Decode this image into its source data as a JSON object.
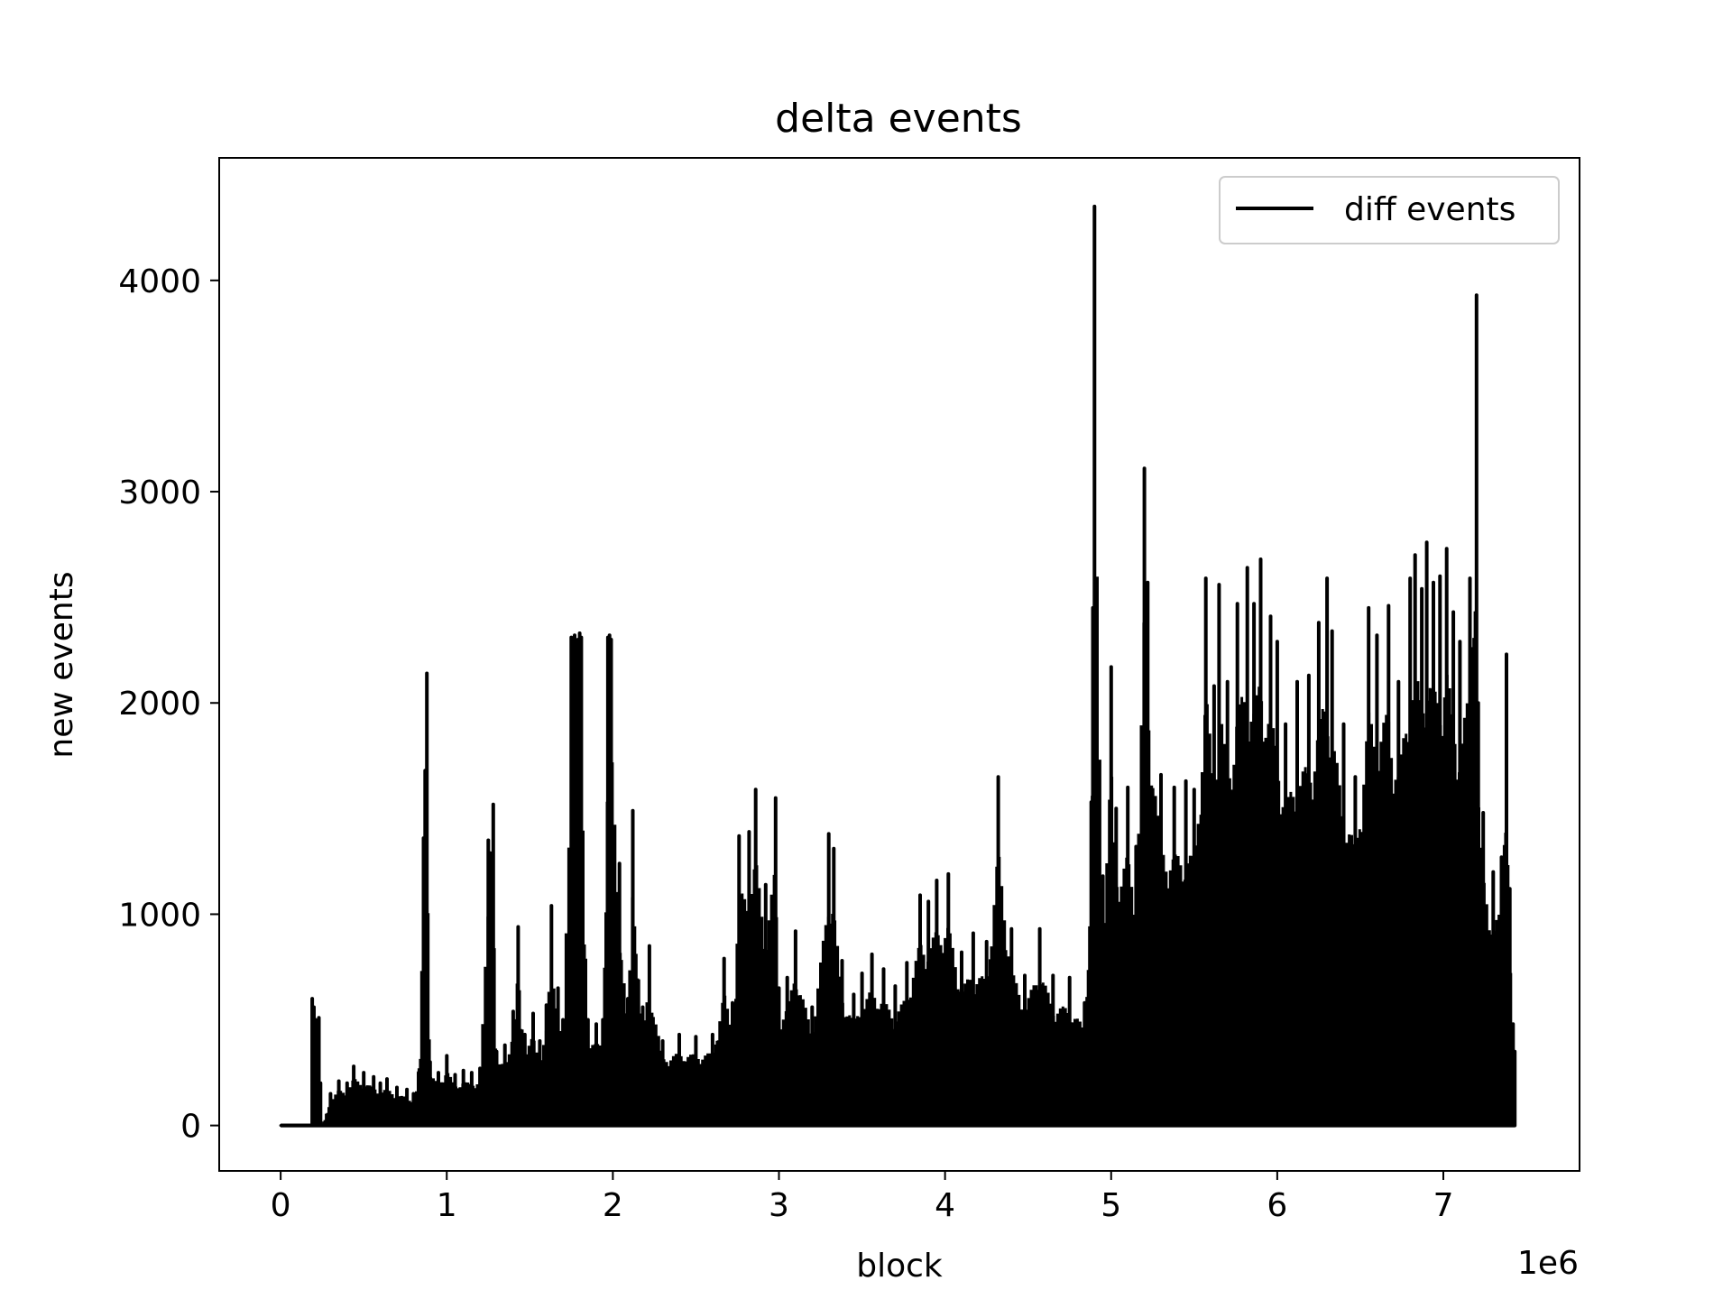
{
  "chart_data": {
    "type": "line",
    "title": "delta events",
    "xlabel": "block",
    "ylabel": "new events",
    "x_offset_label": "1e6",
    "xlim": [
      -0.37,
      7.82
    ],
    "ylim": [
      -215,
      4580
    ],
    "x_ticks": [
      0,
      1,
      2,
      3,
      4,
      5,
      6,
      7
    ],
    "x_tick_labels": [
      "0",
      "1",
      "2",
      "3",
      "4",
      "5",
      "6",
      "7"
    ],
    "y_ticks": [
      0,
      1000,
      2000,
      3000,
      4000
    ],
    "y_tick_labels": [
      "0",
      "1000",
      "2000",
      "3000",
      "4000"
    ],
    "grid": false,
    "legend": {
      "position": "top-right",
      "entries": [
        "diff events"
      ]
    },
    "line_color": "#000000",
    "series": [
      {
        "name": "diff events",
        "x": [
          0.0,
          0.19,
          0.2,
          0.21,
          0.22,
          0.23,
          0.24,
          0.25,
          0.3,
          0.35,
          0.4,
          0.44,
          0.5,
          0.56,
          0.6,
          0.64,
          0.7,
          0.76,
          0.8,
          0.83,
          0.86,
          0.87,
          0.88,
          0.9,
          0.95,
          1.0,
          1.05,
          1.1,
          1.15,
          1.2,
          1.25,
          1.26,
          1.28,
          1.3,
          1.35,
          1.4,
          1.43,
          1.47,
          1.52,
          1.56,
          1.6,
          1.63,
          1.67,
          1.7,
          1.75,
          1.77,
          1.79,
          1.8,
          1.81,
          1.85,
          1.9,
          1.94,
          1.97,
          1.98,
          1.99,
          2.04,
          2.09,
          2.12,
          2.18,
          2.22,
          2.3,
          2.4,
          2.5,
          2.6,
          2.67,
          2.72,
          2.76,
          2.82,
          2.86,
          2.92,
          2.98,
          3.0,
          3.05,
          3.1,
          3.2,
          3.3,
          3.33,
          3.38,
          3.45,
          3.5,
          3.56,
          3.63,
          3.7,
          3.77,
          3.85,
          3.9,
          3.95,
          4.02,
          4.1,
          4.17,
          4.25,
          4.32,
          4.4,
          4.48,
          4.57,
          4.65,
          4.75,
          4.84,
          4.88,
          4.89,
          4.9,
          4.95,
          5.0,
          5.03,
          5.1,
          5.15,
          5.2,
          5.22,
          5.3,
          5.38,
          5.45,
          5.5,
          5.57,
          5.62,
          5.65,
          5.7,
          5.76,
          5.82,
          5.86,
          5.9,
          5.96,
          6.0,
          6.05,
          6.12,
          6.19,
          6.25,
          6.3,
          6.33,
          6.4,
          6.47,
          6.55,
          6.6,
          6.67,
          6.73,
          6.8,
          6.83,
          6.87,
          6.9,
          6.94,
          6.98,
          7.02,
          7.06,
          7.1,
          7.16,
          7.2,
          7.21,
          7.24,
          7.3,
          7.35,
          7.38,
          7.4,
          7.42,
          7.43
        ],
        "y": [
          0,
          600,
          560,
          500,
          330,
          510,
          200,
          0,
          150,
          210,
          200,
          280,
          250,
          230,
          200,
          220,
          180,
          170,
          150,
          250,
          1360,
          1680,
          2140,
          300,
          250,
          330,
          240,
          260,
          250,
          270,
          1350,
          1290,
          1520,
          350,
          380,
          540,
          940,
          430,
          530,
          400,
          570,
          1040,
          650,
          500,
          2310,
          2320,
          2300,
          2330,
          2310,
          500,
          480,
          500,
          2310,
          2320,
          2300,
          1240,
          600,
          1490,
          560,
          850,
          400,
          430,
          420,
          430,
          790,
          580,
          1370,
          1390,
          1590,
          1140,
          1550,
          650,
          700,
          920,
          560,
          1380,
          1310,
          780,
          620,
          720,
          810,
          740,
          660,
          770,
          1090,
          1060,
          1160,
          1190,
          820,
          910,
          870,
          1650,
          930,
          710,
          930,
          710,
          700,
          580,
          1530,
          2450,
          4350,
          1180,
          2170,
          1500,
          1600,
          1320,
          3110,
          2570,
          1660,
          1600,
          1630,
          1590,
          2590,
          2080,
          2560,
          2100,
          2470,
          2640,
          2470,
          2680,
          2410,
          2290,
          1900,
          2100,
          2130,
          2380,
          2590,
          2340,
          1900,
          1650,
          2450,
          2320,
          2460,
          2100,
          2590,
          2700,
          2540,
          2760,
          2570,
          2600,
          2730,
          2430,
          2290,
          2590,
          3930,
          2000,
          1480,
          1200,
          1270,
          2230,
          1120,
          480,
          350
        ],
        "floor_x": [
          0.0,
          0.25,
          1.6,
          4.88,
          7.43
        ],
        "floor_y": [
          0,
          0,
          0,
          0,
          0
        ]
      }
    ]
  }
}
